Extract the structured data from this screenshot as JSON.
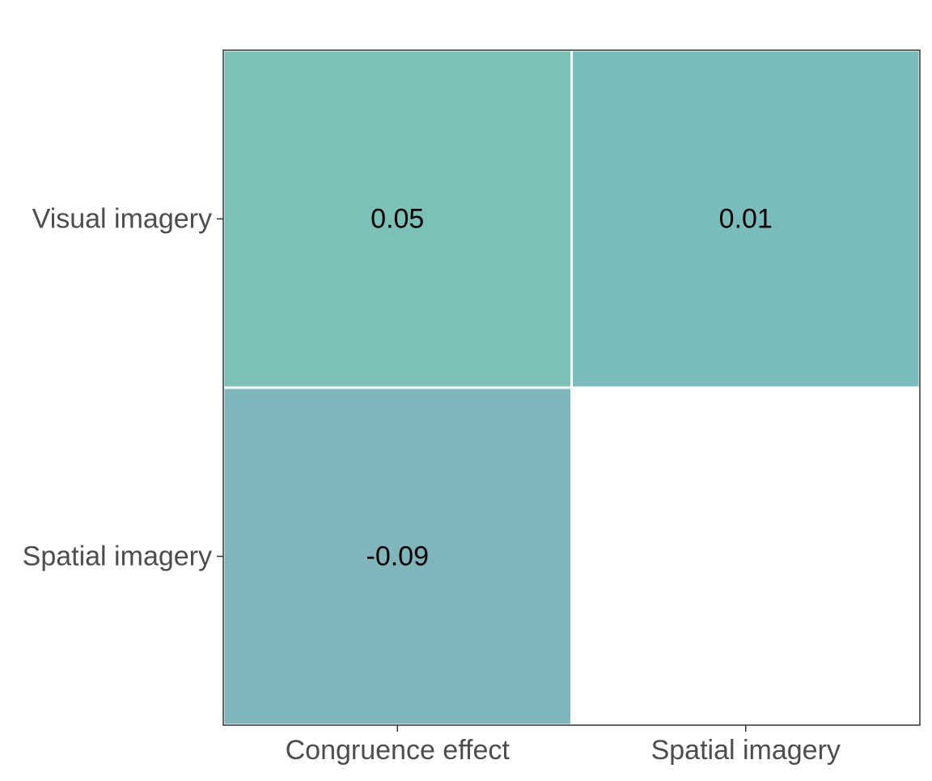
{
  "chart_data": {
    "type": "heatmap",
    "title": "",
    "xlabel": "",
    "ylabel": "",
    "x_categories": [
      "Congruence effect",
      "Spatial imagery"
    ],
    "y_categories": [
      "Visual imagery",
      "Spatial imagery"
    ],
    "cells": [
      {
        "x": "Congruence effect",
        "y": "Visual imagery",
        "value": 0.05,
        "label": "0.05",
        "color": "#7cc0b8"
      },
      {
        "x": "Spatial imagery",
        "y": "Visual imagery",
        "value": 0.01,
        "label": "0.01",
        "color": "#7abcbb"
      },
      {
        "x": "Congruence effect",
        "y": "Spatial imagery",
        "value": -0.09,
        "label": "-0.09",
        "color": "#7fb5bb"
      }
    ],
    "empty_cells": [
      {
        "x": "Spatial imagery",
        "y": "Spatial imagery"
      }
    ],
    "grid": false,
    "legend": "none"
  }
}
